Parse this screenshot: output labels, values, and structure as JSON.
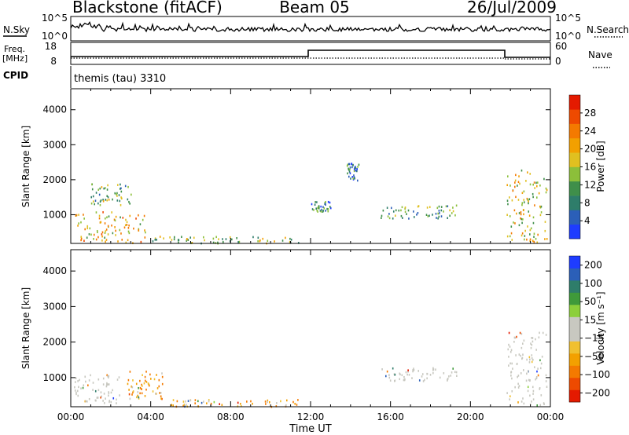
{
  "header": {
    "station": "Blackstone (fitACF)",
    "beam": "Beam 05",
    "date": "26/Jul/2009"
  },
  "strips": {
    "noise": {
      "left_label": "N.Sky",
      "right_label": "N.Search",
      "left_ticks": [
        "10^5",
        "10^0"
      ],
      "right_ticks": [
        "10^5",
        "10^0"
      ]
    },
    "freq": {
      "left_label_top": "Freq.",
      "left_label_unit": "[MHz]",
      "left_ticks": [
        "18",
        "8"
      ],
      "right_label": "Nave",
      "right_ticks": [
        "60",
        "0"
      ]
    },
    "cpid": {
      "left_label": "CPID",
      "text": "themis (tau) 3310"
    }
  },
  "chart_data": [
    {
      "type": "scatter",
      "title": "",
      "quantity": "Power",
      "xlabel": "",
      "ylabel": "Slant Range [km]",
      "xlim": [
        0,
        24
      ],
      "ylim": [
        180,
        4600
      ],
      "y_ticks": [
        1000,
        2000,
        3000,
        4000
      ],
      "colorbar": {
        "label": "Power [dB]",
        "ticks": [
          "4",
          "8",
          "12",
          "16",
          "20",
          "24",
          "28"
        ],
        "colors": [
          "#1e3cff",
          "#2b5fb8",
          "#2e7d6a",
          "#3f8f4a",
          "#8cbf3a",
          "#e0c020",
          "#f2a000",
          "#f47a00",
          "#ee4a00",
          "#e41a00"
        ]
      },
      "features": [
        {
          "x_start": 0.1,
          "x_end": 3.8,
          "range_km": [
            200,
            1100
          ],
          "typical_db": 18
        },
        {
          "x_start": 1.0,
          "x_end": 3.0,
          "range_km": [
            1300,
            1900
          ],
          "typical_db": 12
        },
        {
          "x_start": 4.0,
          "x_end": 11.5,
          "range_km": [
            200,
            400
          ],
          "typical_db": 14
        },
        {
          "x_start": 12.0,
          "x_end": 13.0,
          "range_km": [
            1100,
            1400
          ],
          "typical_db": 8
        },
        {
          "x_start": 13.8,
          "x_end": 14.4,
          "range_km": [
            2000,
            2500
          ],
          "typical_db": 8
        },
        {
          "x_start": 15.5,
          "x_end": 19.3,
          "range_km": [
            900,
            1300
          ],
          "typical_db": 10
        },
        {
          "x_start": 21.8,
          "x_end": 23.8,
          "range_km": [
            200,
            2300
          ],
          "typical_db": 16
        }
      ]
    },
    {
      "type": "scatter",
      "title": "",
      "quantity": "Velocity",
      "xlabel": "Time UT",
      "ylabel": "Slant Range [km]",
      "xlim": [
        0,
        24
      ],
      "ylim": [
        180,
        4600
      ],
      "x_ticks": [
        "00:00",
        "04:00",
        "08:00",
        "12:00",
        "16:00",
        "20:00",
        "00:00"
      ],
      "y_ticks": [
        1000,
        2000,
        3000,
        4000
      ],
      "colorbar": {
        "label": "Velocity [m s⁻¹]",
        "ticks": [
          "200",
          "100",
          "50",
          "15",
          "−15",
          "−50",
          "−100",
          "−200"
        ],
        "colors": [
          "#1e3cff",
          "#2b5fb8",
          "#2e7d6a",
          "#3f9a3a",
          "#8ccf3a",
          "#c8c8c0",
          "#c8c8c0",
          "#f0c030",
          "#f3a000",
          "#f47a00",
          "#ee4a00",
          "#e41a00"
        ]
      },
      "features": [
        {
          "x_start": 0.1,
          "x_end": 2.5,
          "range_km": [
            300,
            1100
          ],
          "typical_velocity": 0
        },
        {
          "x_start": 2.8,
          "x_end": 4.6,
          "range_km": [
            400,
            1200
          ],
          "typical_velocity": -80
        },
        {
          "x_start": 5.0,
          "x_end": 11.5,
          "range_km": [
            200,
            400
          ],
          "typical_velocity": -40
        },
        {
          "x_start": 15.5,
          "x_end": 19.3,
          "range_km": [
            900,
            1300
          ],
          "typical_velocity": 0
        },
        {
          "x_start": 21.8,
          "x_end": 23.8,
          "range_km": [
            200,
            2300
          ],
          "typical_velocity": 0
        }
      ]
    }
  ]
}
